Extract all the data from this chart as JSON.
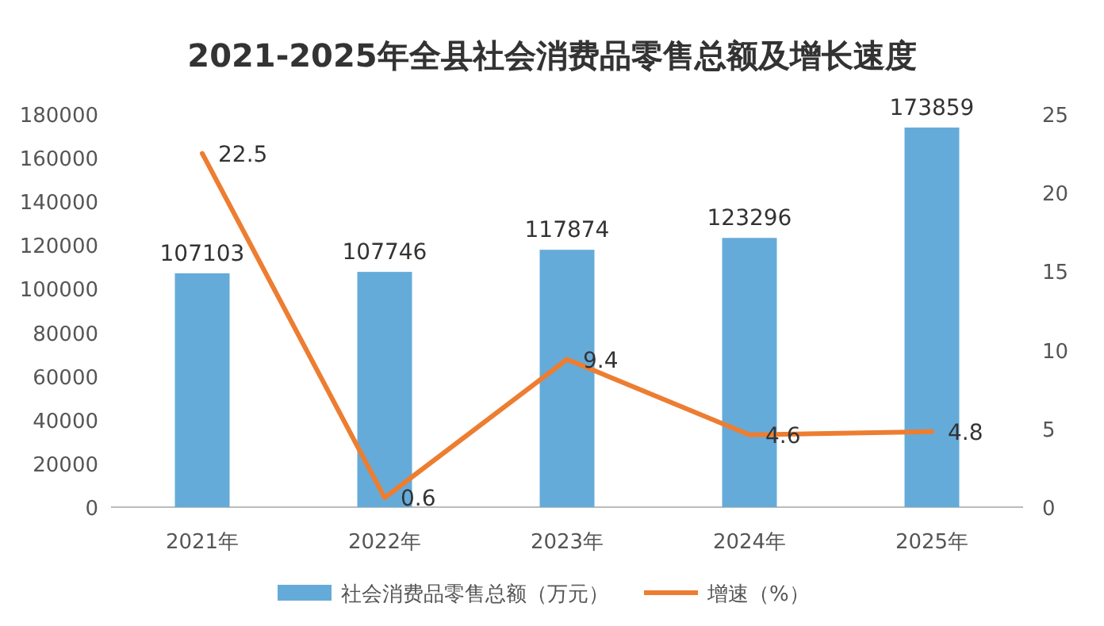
{
  "chart_data": {
    "type": "bar",
    "title": "2021-2025年全县社会消费品零售总额及增长速度",
    "categories": [
      "2021年",
      "2022年",
      "2023年",
      "2024年",
      "2025年"
    ],
    "series": [
      {
        "name": "社会消费品零售总额（万元）",
        "color": "#65abd9",
        "values": [
          107103,
          107746,
          117874,
          123296,
          173859
        ]
      },
      {
        "name": "增速（%）",
        "type": "line",
        "axis": "y2",
        "color": "#ed7d31",
        "values": [
          22.5,
          0.6,
          9.4,
          4.6,
          4.8
        ]
      }
    ],
    "ylim": [
      0,
      180000
    ],
    "yticks": [
      0,
      20000,
      40000,
      60000,
      80000,
      100000,
      120000,
      140000,
      160000,
      180000
    ],
    "y2lim": [
      0,
      25
    ],
    "y2ticks": [
      0,
      5,
      10,
      15,
      20,
      25
    ],
    "data_labels": true,
    "legend": "bottom",
    "grid": false
  }
}
